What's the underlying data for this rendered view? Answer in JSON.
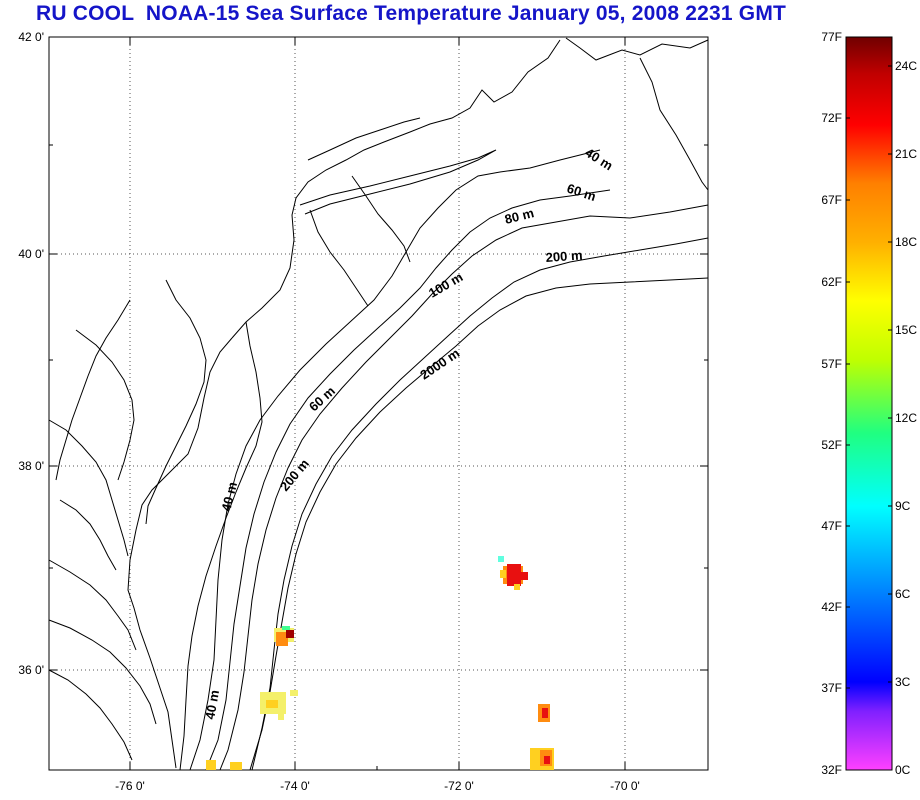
{
  "title": "RU COOL  NOAA-15 Sea Surface Temperature January 05, 2008 2231 GMT",
  "map": {
    "lat_labels": [
      "42 0'",
      "40 0'",
      "38 0'",
      "36 0'"
    ],
    "lon_labels": [
      "-76 0'",
      "-74 0'",
      "-72 0'",
      "-70 0'"
    ],
    "grid": "dotted",
    "isobath_labels": [
      "40 m",
      "60 m",
      "80 m",
      "200 m",
      "100 m",
      "2000 m",
      "60 m",
      "200 m",
      "40 m",
      "40 m"
    ]
  },
  "colorbar": {
    "fahrenheit_labels": [
      "77F",
      "72F",
      "67F",
      "62F",
      "57F",
      "52F",
      "47F",
      "42F",
      "37F",
      "32F"
    ],
    "celsius_labels": [
      "24C",
      "21C",
      "18C",
      "15C",
      "12C",
      "9C",
      "6C",
      "3C",
      "0C"
    ],
    "colors": [
      "#ff40ff",
      "#8020ff",
      "#0000ff",
      "#0080ff",
      "#00ffff",
      "#20ff80",
      "#c0ff00",
      "#ffff00",
      "#ffb000",
      "#ff8000",
      "#ff0000",
      "#c00000",
      "#700000"
    ]
  },
  "sst_patches": {
    "colors": {
      "red": "#e81010",
      "orange": "#ff8c10",
      "yellow": "#ffd020",
      "lightyellow": "#f4f06a",
      "green": "#40ff90",
      "cyan": "#60ffe0",
      "darkred": "#a00000"
    }
  }
}
